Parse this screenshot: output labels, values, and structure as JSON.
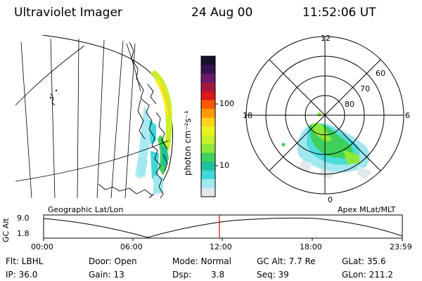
{
  "header": {
    "title": "Ultraviolet Imager",
    "date": "24 Aug 00",
    "time": "11:52:06 UT"
  },
  "colorbar": {
    "unit_label": "photon cm⁻²s⁻¹",
    "ticks": [
      "100",
      "10"
    ],
    "colors": [
      "#151030",
      "#3a1050",
      "#6a1a6a",
      "#a0183c",
      "#d81a1a",
      "#ff5a00",
      "#ff9a00",
      "#ffd21a",
      "#f0f020",
      "#c8f02a",
      "#8ee83a",
      "#3ed05a",
      "#1ec0a0",
      "#40d8d8",
      "#a0e8f0",
      "#e0e8ec"
    ]
  },
  "polar_plot": {
    "latitude_labels": [
      "60",
      "70",
      "80"
    ],
    "mlt_labels": {
      "top": "12",
      "left": "18",
      "right": "6",
      "bottom": "0"
    }
  },
  "timeline": {
    "left_label": "Geographic Lat/Lon",
    "right_label": "Apex MLat/MLT",
    "axis_title": "GC Alt",
    "y_ticks": [
      "9.0",
      "1.8"
    ],
    "x_ticks": [
      "00:00",
      "06:00",
      "12:00",
      "18:00",
      "23:59"
    ],
    "marker_time": "11:52",
    "marker_color": "#e00000"
  },
  "info": {
    "flt": "Flt: LBHL",
    "ip": "IP: 36.0",
    "door": "Door: Open",
    "gain": "Gain: 13",
    "mode": "Mode: Normal",
    "dsp_label": "Dsp:",
    "dsp_value": "3.8",
    "gcalt": "GC Alt: 7.7 Re",
    "seq": "Seq: 39",
    "glat": "GLat:  35.6",
    "glon": "GLon: 211.2"
  }
}
